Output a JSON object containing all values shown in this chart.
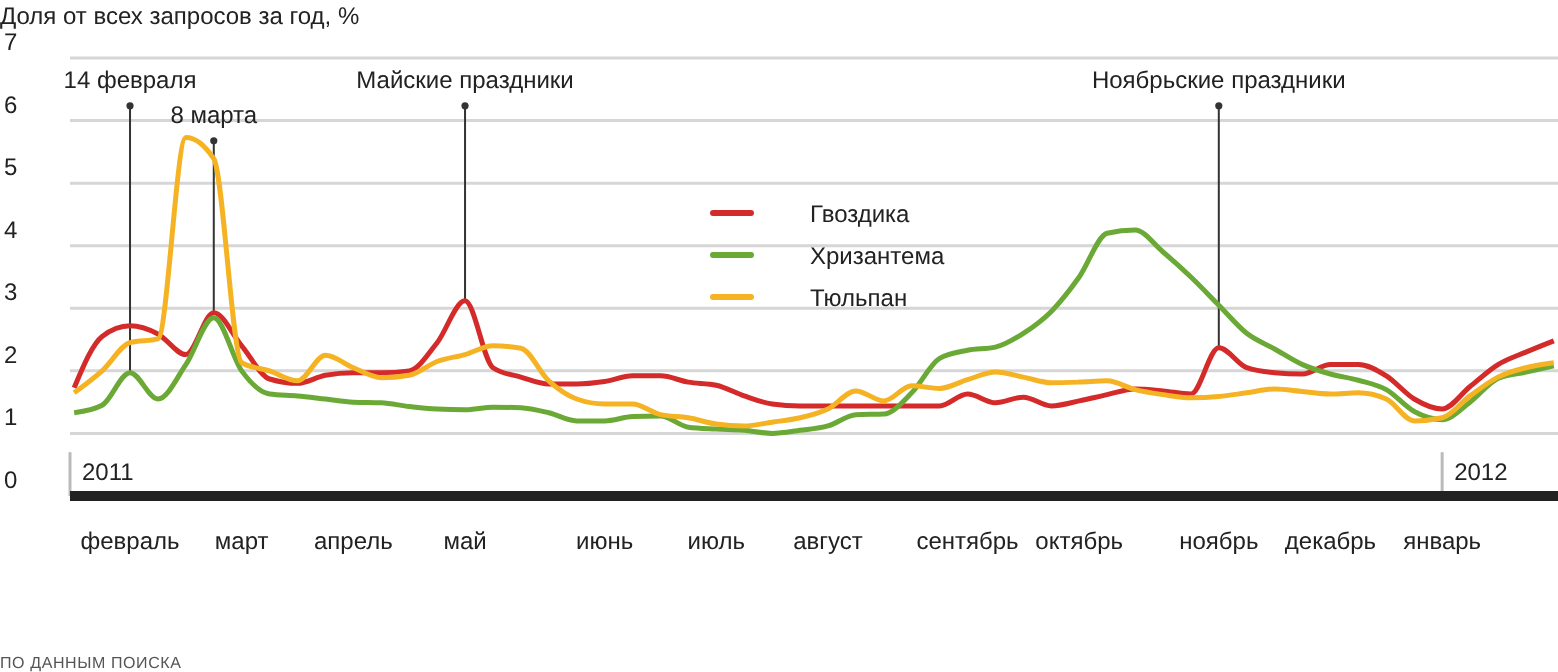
{
  "chart_data": {
    "type": "line",
    "ylabel": "Доля от всех запросов за год, %",
    "ylim": [
      0,
      7
    ],
    "yticks": [
      0,
      1,
      2,
      3,
      4,
      5,
      6,
      7
    ],
    "categories": [
      null,
      null,
      "февраль",
      null,
      null,
      null,
      "март",
      null,
      null,
      null,
      "апрель",
      null,
      null,
      null,
      "май",
      null,
      null,
      null,
      null,
      "июнь",
      null,
      null,
      null,
      "июль",
      null,
      null,
      null,
      "август",
      null,
      null,
      null,
      null,
      "сентябрь",
      null,
      null,
      null,
      "октябрь",
      null,
      null,
      null,
      null,
      "ноябрь",
      null,
      null,
      null,
      "декабрь",
      null,
      null,
      null,
      "январь",
      null,
      null,
      null,
      null
    ],
    "grid": "y",
    "legend": "top",
    "line_style": "solid",
    "marker": "none",
    "series": [
      {
        "name": "Гвоздика",
        "color": "#d42a2a",
        "values": [
          1.73,
          2.55,
          2.72,
          2.59,
          2.26,
          2.93,
          2.4,
          1.87,
          1.8,
          1.93,
          1.97,
          1.97,
          2.0,
          2.45,
          3.12,
          2.05,
          1.9,
          1.79,
          1.79,
          1.83,
          1.92,
          1.92,
          1.82,
          1.77,
          1.6,
          1.47,
          1.44,
          1.44,
          1.44,
          1.44,
          1.44,
          1.44,
          1.63,
          1.49,
          1.58,
          1.44,
          1.52,
          1.62,
          1.71,
          1.68,
          1.63,
          2.37,
          2.05,
          1.97,
          1.95,
          2.1,
          2.1,
          1.92,
          1.55,
          1.39,
          1.75,
          2.1,
          2.3,
          2.48
        ]
      },
      {
        "name": "Хризантема",
        "color": "#6aa935",
        "values": [
          1.33,
          1.45,
          1.97,
          1.55,
          2.1,
          2.85,
          2.0,
          1.63,
          1.6,
          1.55,
          1.5,
          1.49,
          1.43,
          1.39,
          1.38,
          1.42,
          1.41,
          1.33,
          1.2,
          1.2,
          1.27,
          1.28,
          1.1,
          1.07,
          1.05,
          1.0,
          1.05,
          1.12,
          1.3,
          1.31,
          1.65,
          2.2,
          2.33,
          2.38,
          2.6,
          2.95,
          3.5,
          4.2,
          4.25,
          3.9,
          3.5,
          3.05,
          2.6,
          2.35,
          2.1,
          1.95,
          1.85,
          1.7,
          1.35,
          1.22,
          1.5,
          1.88,
          1.98,
          2.08
        ]
      },
      {
        "name": "Тюльпан",
        "color": "#f5b324",
        "values": [
          1.65,
          2.0,
          2.45,
          2.51,
          5.73,
          5.39,
          2.13,
          2.0,
          1.84,
          2.25,
          2.05,
          1.89,
          1.93,
          2.15,
          2.26,
          2.4,
          2.36,
          1.84,
          1.55,
          1.47,
          1.47,
          1.3,
          1.25,
          1.15,
          1.12,
          1.18,
          1.25,
          1.39,
          1.68,
          1.52,
          1.76,
          1.72,
          1.86,
          1.98,
          1.9,
          1.81,
          1.82,
          1.84,
          1.7,
          1.62,
          1.57,
          1.59,
          1.65,
          1.71,
          1.67,
          1.63,
          1.65,
          1.55,
          1.2,
          1.25,
          1.6,
          1.9,
          2.05,
          2.13
        ]
      }
    ],
    "annotations": [
      {
        "text": "14 февраля",
        "y": 1.97
      },
      {
        "text": "8 марта",
        "y": 2.93
      },
      {
        "text": "Майские праздники",
        "y": 3.12
      },
      {
        "text": "Ноябрьские праздники",
        "y": 2.37
      },
      "2011",
      "2012",
      "ПО ДАННЫМ ПОИСКА"
    ]
  }
}
